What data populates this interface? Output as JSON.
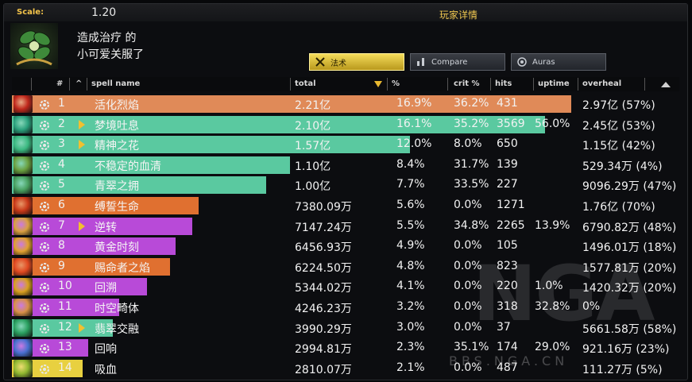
{
  "header": {
    "scale_label": "Scale:",
    "scale_value": "1.20",
    "window_title": "玩家详情",
    "heading": "造成治疗 的",
    "player_name": "小可爱关服了"
  },
  "tabs": [
    {
      "label": "法术",
      "icon": "spell-icon",
      "active": true
    },
    {
      "label": "Compare",
      "icon": "compare-icon",
      "active": false
    },
    {
      "label": "Auras",
      "icon": "auras-icon",
      "active": false
    }
  ],
  "columns": {
    "index": "#",
    "sort": "^",
    "name": "spell name",
    "total": "total",
    "percent": "%",
    "crit": "crit %",
    "hits": "hits",
    "uptime": "uptime",
    "overheal": "overheal"
  },
  "rows": [
    {
      "num": "1",
      "name": "活化烈焰",
      "total": "2.21亿",
      "pct": "16.9%",
      "crit": "36.2%",
      "hits": "431",
      "uptime": "",
      "overheal": "2.97亿 (57%)",
      "color": "#e08a58",
      "bar": 1.0,
      "expand": false,
      "icon_color": "#c0281c"
    },
    {
      "num": "2",
      "name": "梦境吐息",
      "total": "2.10亿",
      "pct": "16.1%",
      "crit": "35.2%",
      "hits": "3569",
      "uptime": "56.0%",
      "overheal": "2.45亿 (53%)",
      "color": "#5ac9a0",
      "bar": 0.953,
      "expand": true,
      "icon_color": "#2aa07c"
    },
    {
      "num": "3",
      "name": "精神之花",
      "total": "1.57亿",
      "pct": "12.0%",
      "crit": "8.0%",
      "hits": "650",
      "uptime": "",
      "overheal": "1.15亿 (42%)",
      "color": "#5ac9a0",
      "bar": 0.712,
      "expand": true,
      "icon_color": "#3ab880"
    },
    {
      "num": "4",
      "name": "不稳定的血清",
      "total": "1.10亿",
      "pct": "8.4%",
      "crit": "31.7%",
      "hits": "139",
      "uptime": "",
      "overheal": "529.34万 (4%)",
      "color": "#5ac9a0",
      "bar": 0.497,
      "expand": false,
      "icon_color": "#6aa040"
    },
    {
      "num": "5",
      "name": "青翠之拥",
      "total": "1.00亿",
      "pct": "7.7%",
      "crit": "33.5%",
      "hits": "227",
      "uptime": "",
      "overheal": "9096.29万 (47%)",
      "color": "#5ac9a0",
      "bar": 0.455,
      "expand": false,
      "icon_color": "#48a060"
    },
    {
      "num": "6",
      "name": "缚誓生命",
      "total": "7380.09万",
      "pct": "5.6%",
      "crit": "0.0%",
      "hits": "1271",
      "uptime": "",
      "overheal": "1.76亿 (70%)",
      "color": "#e07030",
      "bar": 0.334,
      "expand": false,
      "icon_color": "#c83818"
    },
    {
      "num": "7",
      "name": "逆转",
      "total": "7147.24万",
      "pct": "5.5%",
      "crit": "34.8%",
      "hits": "2265",
      "uptime": "13.9%",
      "overheal": "6790.82万 (48%)",
      "color": "#b84ad8",
      "bar": 0.323,
      "expand": true,
      "icon_color": "#d8a040"
    },
    {
      "num": "8",
      "name": "黄金时刻",
      "total": "6456.93万",
      "pct": "4.9%",
      "crit": "0.0%",
      "hits": "105",
      "uptime": "",
      "overheal": "1496.01万 (18%)",
      "color": "#b84ad8",
      "bar": 0.292,
      "expand": false,
      "icon_color": "#e0a030"
    },
    {
      "num": "9",
      "name": "赐命者之焰",
      "total": "6224.50万",
      "pct": "4.8%",
      "crit": "0.0%",
      "hits": "823",
      "uptime": "",
      "overheal": "1577.81万 (20%)",
      "color": "#e07030",
      "bar": 0.282,
      "expand": false,
      "icon_color": "#e04820"
    },
    {
      "num": "10",
      "name": "回溯",
      "total": "5344.02万",
      "pct": "4.1%",
      "crit": "0.0%",
      "hits": "220",
      "uptime": "1.0%",
      "overheal": "1420.32万 (20%)",
      "color": "#b84ad8",
      "bar": 0.242,
      "expand": false,
      "icon_color": "#d8a020"
    },
    {
      "num": "11",
      "name": "时空畸体",
      "total": "4246.23万",
      "pct": "3.2%",
      "crit": "0.0%",
      "hits": "318",
      "uptime": "32.8%",
      "overheal": "0%",
      "color": "#b84ad8",
      "bar": 0.192,
      "expand": false,
      "icon_color": "#d89048"
    },
    {
      "num": "12",
      "name": "翡翠交融",
      "total": "3990.29万",
      "pct": "3.0%",
      "crit": "0.0%",
      "hits": "37",
      "uptime": "",
      "overheal": "5661.58万 (58%)",
      "color": "#5ac9a0",
      "bar": 0.181,
      "expand": true,
      "icon_color": "#2aa060"
    },
    {
      "num": "13",
      "name": "回响",
      "total": "2994.81万",
      "pct": "2.3%",
      "crit": "35.1%",
      "hits": "174",
      "uptime": "29.0%",
      "overheal": "921.16万 (23%)",
      "color": "#b84ad8",
      "bar": 0.136,
      "expand": false,
      "icon_color": "#4870d0"
    },
    {
      "num": "14",
      "name": "吸血",
      "total": "2810.07万",
      "pct": "2.1%",
      "crit": "0.0%",
      "hits": "487",
      "uptime": "",
      "overheal": "111.27万 (5%)",
      "color": "#e8d040",
      "bar": 0.127,
      "expand": false,
      "icon_color": "#90b830"
    }
  ]
}
